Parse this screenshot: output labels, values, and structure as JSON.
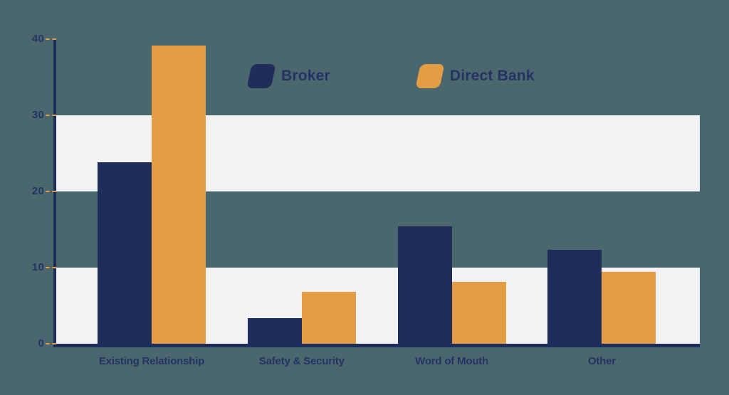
{
  "chart_data": {
    "type": "bar",
    "title": "",
    "xlabel": "",
    "ylabel": "",
    "categories": [
      "Existing Relationship",
      "Safety & Security",
      "Word of Mouth",
      "Other"
    ],
    "series": [
      {
        "name": "Broker",
        "color": "#1f2d5a",
        "values": [
          23.8,
          3.4,
          15.4,
          12.3
        ]
      },
      {
        "name": "Direct Bank",
        "color": "#e29d45",
        "values": [
          39.2,
          6.8,
          8.1,
          9.4
        ]
      }
    ],
    "ylim": [
      0,
      40
    ],
    "yticks": [
      0,
      10,
      20,
      30,
      40
    ],
    "bands": [
      [
        0,
        10
      ],
      [
        20,
        30
      ]
    ],
    "grid": false,
    "legend_position": "top-center"
  },
  "colors": {
    "background": "#4b676e",
    "band": "#f2f2f4",
    "axis": "#1f2d5a",
    "tick_dash": "#e29d45",
    "text": "#253263"
  }
}
